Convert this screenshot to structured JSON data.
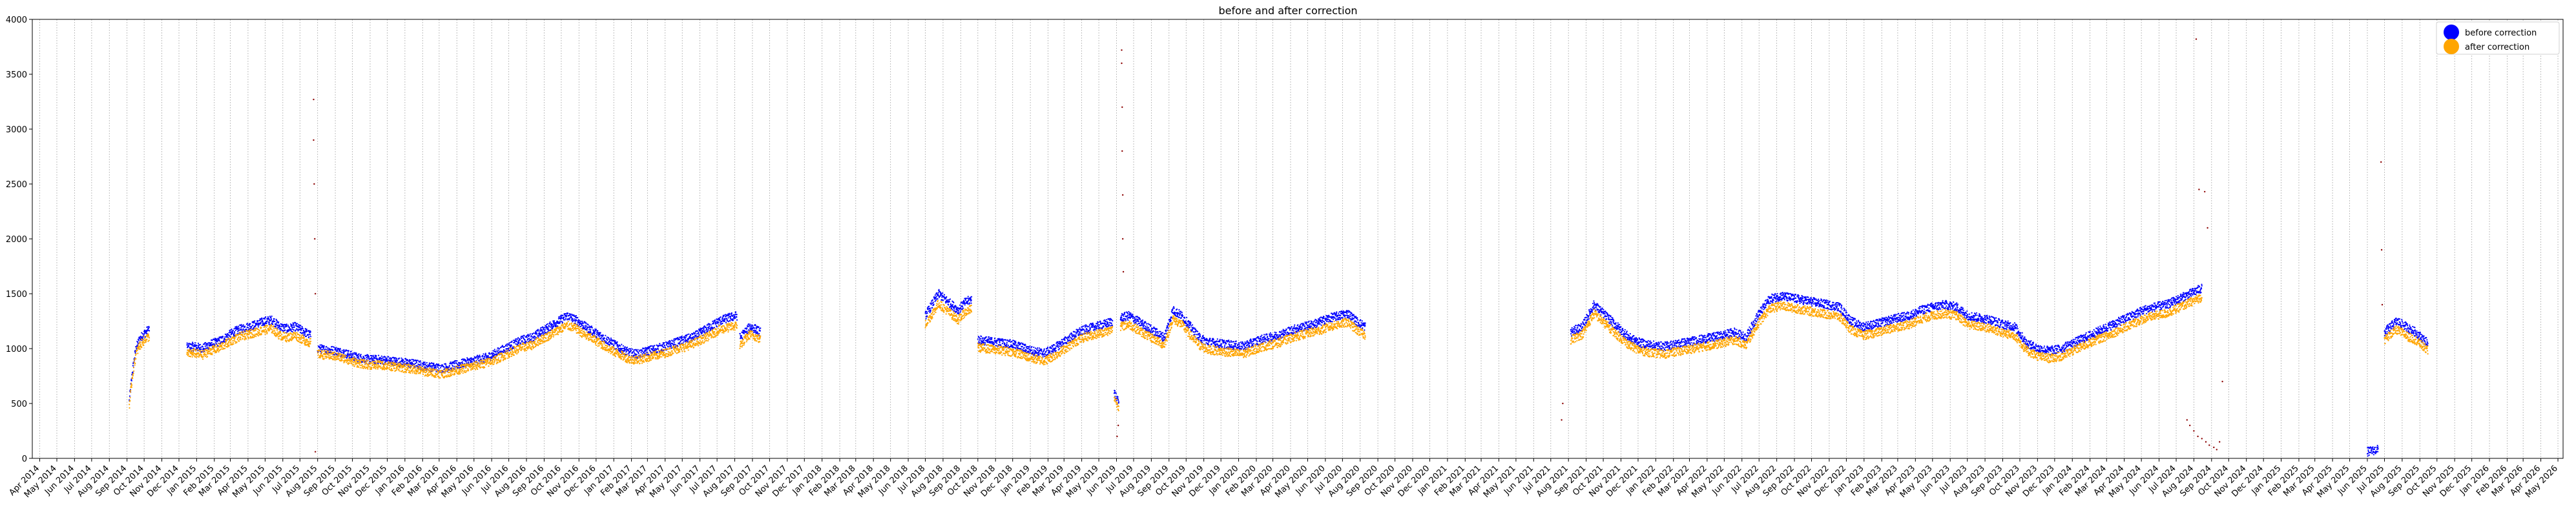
{
  "chart_data": {
    "type": "scatter",
    "title": "before and after correction",
    "xlabel": "",
    "ylabel": "",
    "ylim": [
      0,
      4000
    ],
    "yticks": [
      0,
      500,
      1000,
      1500,
      2000,
      2500,
      3000,
      3500,
      4000
    ],
    "xlim": [
      "2014-03-19",
      "2026-05-10"
    ],
    "grid": "vertical-only",
    "legend_position": "top-right",
    "series": [
      {
        "name": "before correction",
        "color": "#0000ff",
        "segments": [
          {
            "start": "2014-09-05",
            "end": "2014-10-10",
            "values": [
              520,
              800,
              1000,
              1080,
              1120,
              1150,
              1180
            ]
          },
          {
            "start": "2014-12-15",
            "end": "2015-07-20",
            "values": [
              1010,
              1020,
              1000,
              1040,
              1060,
              1100,
              1150,
              1180,
              1200,
              1220,
              1250,
              1260,
              1200,
              1180,
              1200,
              1160,
              1120
            ]
          },
          {
            "start": "2015-08-01",
            "end": "2017-08-05",
            "values": [
              1000,
              990,
              980,
              960,
              930,
              910,
              900,
              900,
              890,
              880,
              870,
              860,
              840,
              830,
              820,
              840,
              860,
              880,
              900,
              920,
              960,
              1000,
              1040,
              1080,
              1100,
              1150,
              1200,
              1250,
              1300,
              1260,
              1200,
              1150,
              1100,
              1050,
              1000,
              960,
              950,
              980,
              1000,
              1020,
              1050,
              1080,
              1100,
              1150,
              1200,
              1250,
              1280,
              1300
            ]
          },
          {
            "start": "2017-08-10",
            "end": "2017-09-15",
            "values": [
              1100,
              1150,
              1200,
              1180,
              1150
            ]
          },
          {
            "start": "2018-07-01",
            "end": "2018-09-20",
            "values": [
              1300,
              1400,
              1500,
              1450,
              1400,
              1350,
              1420,
              1450
            ]
          },
          {
            "start": "2018-10-01",
            "end": "2019-05-25",
            "values": [
              1080,
              1070,
              1060,
              1050,
              1040,
              1020,
              990,
              970,
              960,
              1000,
              1050,
              1100,
              1150,
              1180,
              1200,
              1220,
              1250
            ]
          },
          {
            "start": "2019-05-28",
            "end": "2019-06-05",
            "values": [
              600,
              550,
              500
            ]
          },
          {
            "start": "2019-06-08",
            "end": "2020-08-10",
            "values": [
              1280,
              1300,
              1250,
              1200,
              1150,
              1100,
              1350,
              1300,
              1200,
              1100,
              1060,
              1050,
              1040,
              1030,
              1020,
              1050,
              1080,
              1100,
              1120,
              1150,
              1180,
              1200,
              1220,
              1250,
              1280,
              1300,
              1320,
              1250,
              1200
            ]
          },
          {
            "start": "2021-08-05",
            "end": "2024-08-15",
            "values": [
              1150,
              1200,
              1400,
              1300,
              1200,
              1100,
              1050,
              1030,
              1020,
              1040,
              1060,
              1080,
              1100,
              1120,
              1150,
              1100,
              1300,
              1450,
              1480,
              1460,
              1440,
              1420,
              1400,
              1380,
              1250,
              1200,
              1220,
              1250,
              1280,
              1300,
              1350,
              1380,
              1400,
              1380,
              1300,
              1280,
              1260,
              1220,
              1200,
              1050,
              1000,
              980,
              1000,
              1050,
              1100,
              1150,
              1200,
              1250,
              1300,
              1350,
              1380,
              1400,
              1450,
              1500,
              1550
            ]
          },
          {
            "start": "2025-06-01",
            "end": "2025-06-20",
            "values": [
              60,
              70,
              80
            ]
          },
          {
            "start": "2025-07-01",
            "end": "2025-09-15",
            "values": [
              1150,
              1200,
              1250,
              1220,
              1180,
              1150,
              1100,
              1050
            ]
          }
        ]
      },
      {
        "name": "after correction",
        "color": "#ffa500",
        "segments": [
          {
            "start": "2014-09-05",
            "end": "2014-10-10",
            "values": [
              480,
              760,
              950,
              1020,
              1060,
              1090,
              1110
            ]
          },
          {
            "start": "2014-12-15",
            "end": "2015-07-20",
            "values": [
              950,
              960,
              940,
              980,
              1000,
              1040,
              1080,
              1110,
              1130,
              1150,
              1170,
              1180,
              1120,
              1100,
              1120,
              1080,
              1050
            ]
          },
          {
            "start": "2015-08-01",
            "end": "2017-08-05",
            "values": [
              950,
              940,
              930,
              910,
              880,
              860,
              850,
              850,
              840,
              830,
              820,
              810,
              790,
              780,
              770,
              790,
              810,
              830,
              850,
              870,
              900,
              940,
              980,
              1010,
              1030,
              1080,
              1120,
              1170,
              1210,
              1180,
              1120,
              1080,
              1030,
              980,
              940,
              900,
              900,
              920,
              940,
              960,
              990,
              1010,
              1040,
              1080,
              1120,
              1170,
              1190,
              1210
            ]
          },
          {
            "start": "2017-08-10",
            "end": "2017-09-15",
            "values": [
              1030,
              1080,
              1130,
              1110,
              1080
            ]
          },
          {
            "start": "2018-07-01",
            "end": "2018-09-20",
            "values": [
              1220,
              1310,
              1410,
              1360,
              1310,
              1260,
              1330,
              1360
            ]
          },
          {
            "start": "2018-10-01",
            "end": "2019-05-25",
            "values": [
              1010,
              1000,
              990,
              980,
              970,
              950,
              920,
              900,
              890,
              930,
              980,
              1030,
              1080,
              1110,
              1130,
              1150,
              1170
            ]
          },
          {
            "start": "2019-05-28",
            "end": "2019-06-05",
            "values": [
              560,
              510,
              470
            ]
          },
          {
            "start": "2019-06-08",
            "end": "2020-08-10",
            "values": [
              1200,
              1220,
              1170,
              1120,
              1080,
              1030,
              1270,
              1220,
              1120,
              1030,
              990,
              980,
              970,
              960,
              950,
              980,
              1010,
              1030,
              1050,
              1080,
              1110,
              1130,
              1150,
              1170,
              1200,
              1220,
              1240,
              1170,
              1120
            ]
          },
          {
            "start": "2021-08-05",
            "end": "2024-08-15",
            "values": [
              1080,
              1130,
              1320,
              1220,
              1120,
              1030,
              980,
              960,
              950,
              970,
              990,
              1010,
              1030,
              1050,
              1080,
              1030,
              1220,
              1360,
              1390,
              1370,
              1350,
              1330,
              1310,
              1290,
              1170,
              1120,
              1140,
              1170,
              1200,
              1220,
              1270,
              1300,
              1320,
              1300,
              1220,
              1200,
              1180,
              1140,
              1120,
              980,
              930,
              910,
              930,
              980,
              1030,
              1080,
              1120,
              1170,
              1220,
              1270,
              1300,
              1320,
              1370,
              1420,
              1470
            ]
          },
          {
            "start": "2025-07-01",
            "end": "2025-09-15",
            "values": [
              1080,
              1130,
              1170,
              1140,
              1100,
              1080,
              1030,
              980
            ]
          }
        ]
      }
    ],
    "outliers": {
      "color": "#8b0000",
      "points": [
        {
          "date": "2015-07-25",
          "value": 3270
        },
        {
          "date": "2015-07-25",
          "value": 2900
        },
        {
          "date": "2015-07-26",
          "value": 2500
        },
        {
          "date": "2015-07-27",
          "value": 2000
        },
        {
          "date": "2015-07-28",
          "value": 1500
        },
        {
          "date": "2015-07-28",
          "value": 60
        },
        {
          "date": "2019-06-10",
          "value": 3720
        },
        {
          "date": "2019-06-10",
          "value": 3600
        },
        {
          "date": "2019-06-11",
          "value": 3200
        },
        {
          "date": "2019-06-11",
          "value": 2800
        },
        {
          "date": "2019-06-12",
          "value": 2400
        },
        {
          "date": "2019-06-12",
          "value": 2000
        },
        {
          "date": "2019-06-13",
          "value": 1700
        },
        {
          "date": "2019-06-02",
          "value": 200
        },
        {
          "date": "2019-06-04",
          "value": 300
        },
        {
          "date": "2024-08-05",
          "value": 3820
        },
        {
          "date": "2024-08-10",
          "value": 2450
        },
        {
          "date": "2024-08-20",
          "value": 2430
        },
        {
          "date": "2024-08-25",
          "value": 2100
        },
        {
          "date": "2024-07-20",
          "value": 350
        },
        {
          "date": "2024-07-25",
          "value": 300
        },
        {
          "date": "2024-08-01",
          "value": 250
        },
        {
          "date": "2024-08-08",
          "value": 200
        },
        {
          "date": "2024-08-15",
          "value": 180
        },
        {
          "date": "2024-08-22",
          "value": 150
        },
        {
          "date": "2024-08-28",
          "value": 120
        },
        {
          "date": "2024-09-05",
          "value": 100
        },
        {
          "date": "2024-09-10",
          "value": 80
        },
        {
          "date": "2024-09-15",
          "value": 150
        },
        {
          "date": "2024-09-20",
          "value": 700
        },
        {
          "date": "2025-06-25",
          "value": 2700
        },
        {
          "date": "2025-06-26",
          "value": 1900
        },
        {
          "date": "2025-06-27",
          "value": 1400
        },
        {
          "date": "2021-07-20",
          "value": 350
        },
        {
          "date": "2021-07-22",
          "value": 500
        }
      ]
    }
  }
}
